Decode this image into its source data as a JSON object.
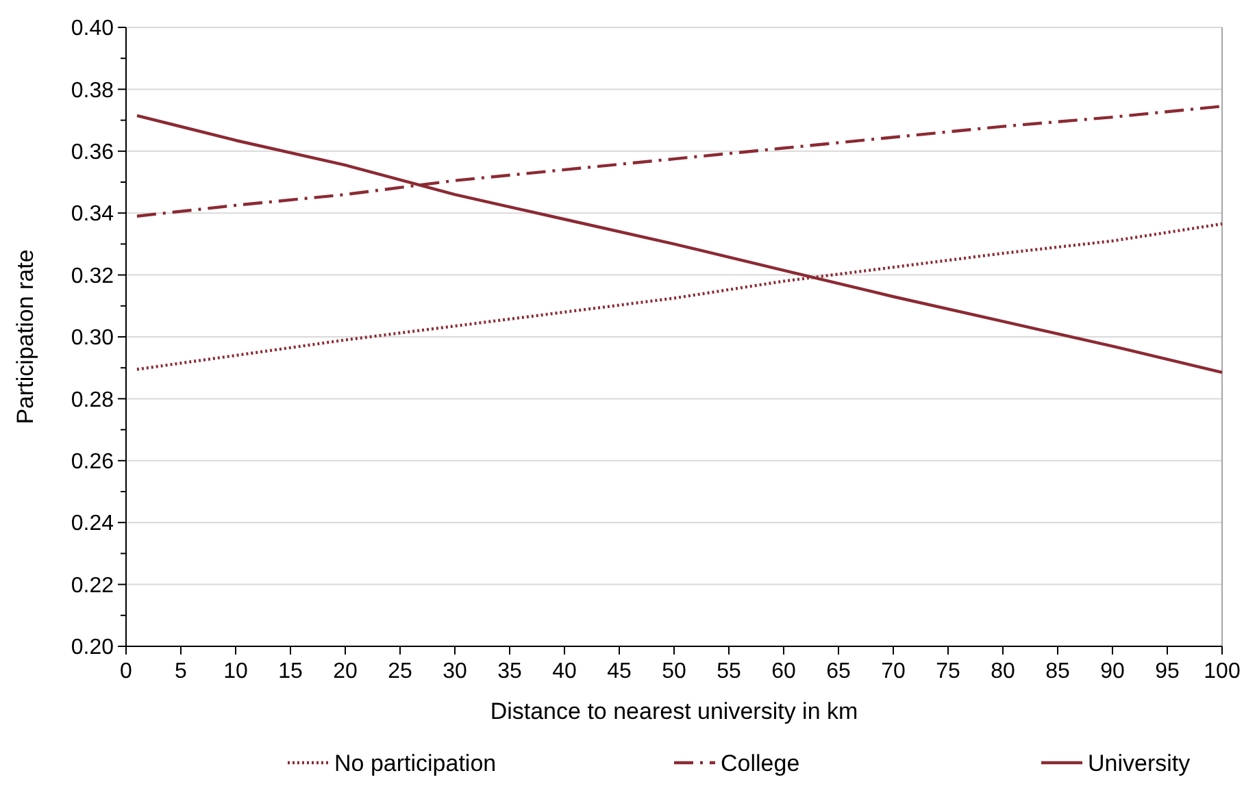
{
  "chart_data": {
    "type": "line",
    "xlabel": "Distance to nearest university in km",
    "ylabel": "Participation rate",
    "x": [
      1,
      10,
      20,
      30,
      40,
      50,
      60,
      70,
      80,
      90,
      100
    ],
    "series": [
      {
        "name": "No participation",
        "color": "#8b2a33",
        "line_style": "dotted",
        "values": [
          0.2895,
          0.294,
          0.299,
          0.3035,
          0.308,
          0.3125,
          0.318,
          0.3225,
          0.327,
          0.331,
          0.3365
        ]
      },
      {
        "name": "College",
        "color": "#8b2a33",
        "line_style": "dashdot",
        "values": [
          0.339,
          0.3425,
          0.346,
          0.3505,
          0.354,
          0.3575,
          0.361,
          0.3645,
          0.368,
          0.371,
          0.3745
        ]
      },
      {
        "name": "University",
        "color": "#8b2a33",
        "line_style": "solid",
        "values": [
          0.3715,
          0.3635,
          0.3555,
          0.346,
          0.338,
          0.33,
          0.3215,
          0.313,
          0.305,
          0.297,
          0.2885
        ]
      }
    ],
    "xlim": [
      0,
      100
    ],
    "xticks": [
      0,
      5,
      10,
      15,
      20,
      25,
      30,
      35,
      40,
      45,
      50,
      55,
      60,
      65,
      70,
      75,
      80,
      85,
      90,
      95,
      100
    ],
    "ylim": [
      0.2,
      0.4
    ],
    "yticks": [
      {
        "value": 0.2,
        "label": "0.20"
      },
      {
        "value": 0.21,
        "label": null
      },
      {
        "value": 0.22,
        "label": "0.22"
      },
      {
        "value": 0.23,
        "label": null
      },
      {
        "value": 0.24,
        "label": "0.24"
      },
      {
        "value": 0.25,
        "label": null
      },
      {
        "value": 0.26,
        "label": "0.26"
      },
      {
        "value": 0.27,
        "label": null
      },
      {
        "value": 0.28,
        "label": "0.28"
      },
      {
        "value": 0.29,
        "label": null
      },
      {
        "value": 0.3,
        "label": "0.30"
      },
      {
        "value": 0.31,
        "label": null
      },
      {
        "value": 0.32,
        "label": "0.32"
      },
      {
        "value": 0.33,
        "label": null
      },
      {
        "value": 0.34,
        "label": "0.34"
      },
      {
        "value": 0.35,
        "label": null
      },
      {
        "value": 0.36,
        "label": "0.36"
      },
      {
        "value": 0.37,
        "label": null
      },
      {
        "value": 0.38,
        "label": "0.38"
      },
      {
        "value": 0.39,
        "label": null
      },
      {
        "value": 0.4,
        "label": "0.40"
      }
    ],
    "grid": "y",
    "legend": "bottom",
    "marker": "none"
  }
}
